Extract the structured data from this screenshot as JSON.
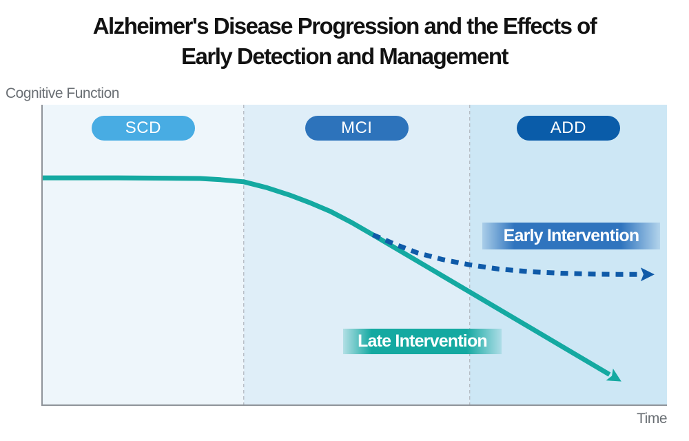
{
  "title": {
    "line1": "Alzheimer's Disease Progression and the Effects of",
    "line2": "Early Detection and Management"
  },
  "y_axis_label": "Cognitive Function",
  "x_axis_label": "Time",
  "stages": [
    {
      "label": "SCD",
      "badge_color": "#48ace3",
      "zone_color": "#eef6fb",
      "width_pct": 32.2
    },
    {
      "label": "MCI",
      "badge_color": "#2d73bb",
      "zone_color": "#dfeef8",
      "width_pct": 36.2
    },
    {
      "label": "ADD",
      "badge_color": "#0a5ca9",
      "zone_color": "#cde7f5",
      "width_pct": 31.6
    }
  ],
  "annotations": [
    {
      "label": "Early Intervention",
      "color": "#2f74be"
    },
    {
      "label": "Late Intervention",
      "color": "#14a9a1"
    }
  ],
  "colors": {
    "late_line": "#14a9a1",
    "early_line": "#0f5aa8",
    "axis": "#8e9399",
    "stage_divider": "#b6bdc5",
    "axis_text": "#6a6f74"
  },
  "chart_data": {
    "type": "line",
    "title": "Alzheimer's Disease Progression and the Effects of Early Detection and Management",
    "xlabel": "Time",
    "ylabel": "Cognitive Function",
    "x_stages": [
      "SCD",
      "MCI",
      "ADD"
    ],
    "stage_boundaries_pct": [
      32.2,
      68.4
    ],
    "axes_note": "qualitative axes, no ticks or gridlines; values are percent of plot extent (y = cognitive function level)",
    "legend_position": "labels on curves",
    "series": [
      {
        "name": "Late Intervention",
        "line_style": "solid",
        "color": "#14a9a1",
        "arrow_end": true,
        "points_pct": [
          [
            0,
            75.6
          ],
          [
            12,
            75.6
          ],
          [
            20,
            75.5
          ],
          [
            25.2,
            75.4
          ],
          [
            28.5,
            75.0
          ],
          [
            32.2,
            74.3
          ],
          [
            35.8,
            72.4
          ],
          [
            39.5,
            69.9
          ],
          [
            42.8,
            67.3
          ],
          [
            46.1,
            64.4
          ],
          [
            49.5,
            60.7
          ],
          [
            52.9,
            56.6
          ],
          [
            90.8,
            10.0
          ]
        ]
      },
      {
        "name": "Early Intervention",
        "line_style": "dotted",
        "color": "#0f5aa8",
        "arrow_end": true,
        "points_pct": [
          [
            52.9,
            56.6
          ],
          [
            56.5,
            53.4
          ],
          [
            60,
            50.6
          ],
          [
            64,
            48.4
          ],
          [
            68.4,
            46.6
          ],
          [
            73,
            45.2
          ],
          [
            78,
            44.3
          ],
          [
            83,
            43.8
          ],
          [
            88,
            43.5
          ],
          [
            92,
            43.4
          ],
          [
            95.8,
            43.4
          ]
        ]
      }
    ]
  }
}
